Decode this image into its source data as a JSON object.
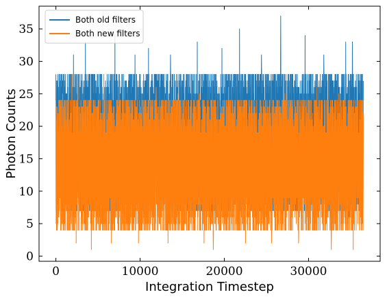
{
  "chart_data": {
    "type": "line",
    "title": "",
    "xlabel": "Integration Timestep",
    "ylabel": "Photon Counts",
    "xlim": [
      -2000,
      38500
    ],
    "ylim": [
      -0.8,
      38.5
    ],
    "x_ticks": [
      0,
      10000,
      20000,
      30000
    ],
    "x_tick_labels": [
      "0",
      "10000",
      "20000",
      "30000"
    ],
    "y_ticks": [
      0,
      5,
      10,
      15,
      20,
      25,
      30,
      35
    ],
    "y_tick_labels": [
      "0",
      "5",
      "10",
      "15",
      "20",
      "25",
      "30",
      "35"
    ],
    "grid": false,
    "legend_position": "top-left",
    "x_range": [
      0,
      36500
    ],
    "series": [
      {
        "name": "Both old filters",
        "color": "#1f77b4",
        "band_typical": [
          7,
          28
        ],
        "spikes_high": [
          [
            3500,
            33
          ],
          [
            7000,
            34
          ],
          [
            11000,
            32
          ],
          [
            16800,
            33
          ],
          [
            21800,
            35
          ],
          [
            26700,
            37
          ],
          [
            29600,
            34
          ],
          [
            34400,
            33
          ],
          [
            35200,
            33
          ],
          [
            2100,
            31
          ],
          [
            9400,
            31
          ],
          [
            13600,
            31
          ],
          [
            19700,
            32
          ],
          [
            24400,
            31
          ],
          [
            31800,
            31
          ]
        ],
        "dips_low": [
          [
            900,
            5
          ],
          [
            5200,
            6
          ],
          [
            12300,
            5
          ],
          [
            18500,
            5
          ],
          [
            23100,
            6
          ],
          [
            30200,
            5
          ],
          [
            34800,
            6
          ]
        ]
      },
      {
        "name": "Both new filters",
        "color": "#ff7f0e",
        "band_typical": [
          4,
          24
        ],
        "spikes_high": [
          [
            800,
            25
          ],
          [
            1900,
            28
          ],
          [
            2600,
            27
          ],
          [
            5700,
            28
          ],
          [
            7500,
            27
          ],
          [
            11900,
            26
          ],
          [
            14500,
            25
          ],
          [
            17000,
            25
          ],
          [
            20500,
            26
          ],
          [
            24900,
            24
          ],
          [
            27200,
            25
          ],
          [
            31000,
            26
          ],
          [
            33600,
            25
          ],
          [
            35700,
            23
          ]
        ],
        "dips_low": [
          [
            800,
            2
          ],
          [
            2400,
            2
          ],
          [
            4200,
            1
          ],
          [
            6600,
            2
          ],
          [
            9800,
            2
          ],
          [
            13300,
            2
          ],
          [
            17600,
            2
          ],
          [
            18700,
            1
          ],
          [
            22500,
            2
          ],
          [
            25600,
            2
          ],
          [
            28800,
            2
          ],
          [
            32700,
            1
          ],
          [
            35300,
            1
          ]
        ]
      }
    ]
  }
}
